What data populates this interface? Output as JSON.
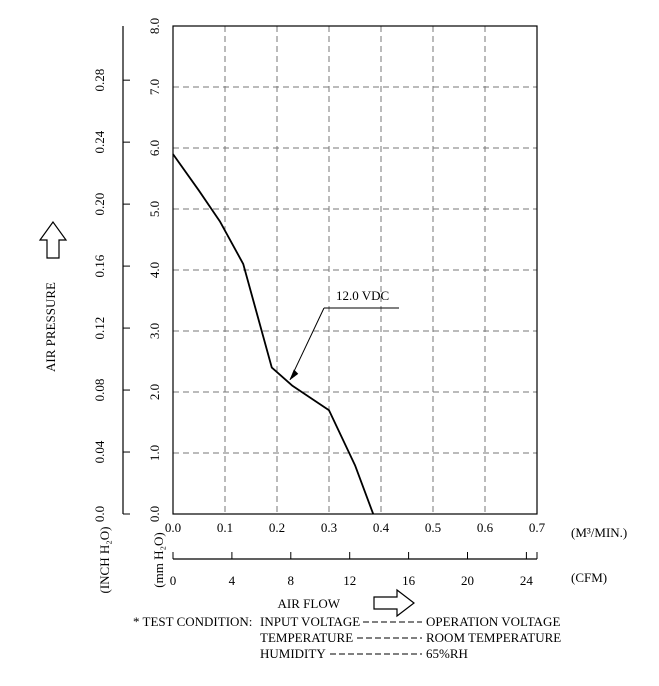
{
  "chart_data": {
    "type": "line",
    "x_unit": "(M³/MIN.)",
    "x2_unit": "(CFM)",
    "xlabel": "AIR FLOW",
    "ylabel": "AIR PRESSURE",
    "y_unit_inch": "(INCH H₂O)",
    "y_unit_mm": "(mm H₂O)",
    "xlim": [
      0,
      0.7
    ],
    "ylim": [
      0,
      8.0
    ],
    "x_ticks": [
      "0.0",
      "0.1",
      "0.2",
      "0.3",
      "0.4",
      "0.5",
      "0.6",
      "0.7"
    ],
    "x2_ticks": [
      "0",
      "4",
      "8",
      "12",
      "16",
      "20",
      "24"
    ],
    "y_mm_ticks": [
      "0.0",
      "1.0",
      "2.0",
      "3.0",
      "4.0",
      "5.0",
      "6.0",
      "7.0",
      "8.0"
    ],
    "y_inch_ticks": [
      "0.0",
      "0.04",
      "0.08",
      "0.12",
      "0.16",
      "0.20",
      "0.24",
      "0.28"
    ],
    "grid": true,
    "series": [
      {
        "name": "12.0 VDC",
        "x": [
          0.0,
          0.05,
          0.09,
          0.135,
          0.19,
          0.23,
          0.3,
          0.35,
          0.385
        ],
        "y": [
          5.9,
          5.3,
          4.8,
          4.1,
          2.4,
          2.1,
          1.7,
          0.8,
          0.0
        ]
      }
    ]
  },
  "test_condition": {
    "prefix": "* TEST CONDITION:",
    "rows": [
      {
        "label": "INPUT VOLTAGE",
        "value": "OPERATION VOLTAGE"
      },
      {
        "label": "TEMPERATURE",
        "value": "ROOM TEMPERATURE"
      },
      {
        "label": "HUMIDITY",
        "value": "65%RH"
      }
    ]
  }
}
